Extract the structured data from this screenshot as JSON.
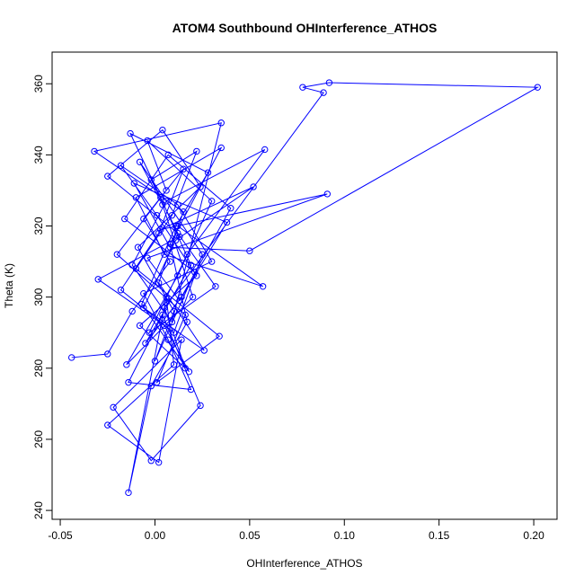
{
  "chart_data": {
    "type": "line",
    "title": "ATOM4 Southbound OHInterference_ATHOS",
    "x_label": "OHInterference_ATHOS",
    "y_label": "Theta (K)",
    "xlim": [
      -0.0543,
      0.2123
    ],
    "ylim": [
      237.5,
      368.9
    ],
    "xticks": [
      -0.05,
      {
        "value": 0,
        "label": "0.00"
      },
      0.05,
      {
        "value": 0.1,
        "label": "0.10"
      },
      0.15,
      {
        "value": 0.2,
        "label": "0.20"
      }
    ],
    "yticks": [
      240,
      260,
      280,
      300,
      320,
      340,
      360
    ],
    "series": [
      {
        "color": "#0000ff",
        "x": [
          -0.044,
          -0.025,
          -0.012,
          0.008,
          -0.006,
          0.015,
          0.002,
          -0.018,
          0.01,
          0.025,
          -0.008,
          0.004,
          0.02,
          -0.015,
          0.012,
          0.03,
          -0.004,
          0.006,
          -0.02,
          0.016,
          0.001,
          0.034,
          -0.01,
          0.009,
          0.022,
          -0.002,
          0.013,
          -0.03,
          0.005,
          0.018,
          -0.007,
          0.011,
          0.028,
          -0.013,
          0.003,
          0.019,
          -0.005,
          0.014,
          0.04,
          0.007,
          -0.016,
          0.021,
          0.0,
          0.01,
          -0.009,
          0.024,
          0.004,
          -0.025,
          0.012,
          0.032,
          -0.003,
          0.017,
          0.058,
          0.006,
          -0.012,
          0.009,
          0.035,
          -0.032,
          0.015,
          0.002,
          0.026,
          -0.006,
          0.011,
          0.052,
          0.003,
          0.091,
          -0.004,
          0.013,
          0.038,
          -0.011,
          0.008,
          0.05,
          0.202,
          0.092,
          0.078,
          0.089,
          0.005,
          0.016,
          -0.008,
          0.022,
          0.001,
          -0.018,
          0.012,
          0.03,
          -0.006,
          0.007,
          0.019,
          -0.014,
          0.004,
          0.024,
          -0.002,
          -0.022,
          0.014,
          0.002,
          -0.025,
          0.01,
          0.006,
          -0.014,
          -0.002,
          0.017,
          0.008,
          0.035,
          -0.01,
          0.005,
          0.057,
          0.012
        ],
        "values": [
          283,
          284,
          296,
          310,
          322,
          336,
          318,
          302,
          290,
          312,
          338,
          326,
          300,
          281,
          306,
          327,
          344,
          330,
          312,
          295,
          276,
          289,
          308,
          323,
          341,
          333,
          317,
          305,
          292,
          279,
          298,
          320,
          335,
          346,
          328,
          309,
          287,
          300,
          325,
          340,
          322,
          307,
          282,
          296,
          314,
          331,
          347,
          334,
          318,
          303,
          290,
          312,
          341.5,
          327,
          309,
          293,
          349,
          341,
          324,
          304,
          285,
          297,
          316,
          331,
          319,
          329,
          311,
          299,
          321,
          332,
          314,
          313,
          359,
          360.3,
          359,
          357.5,
          297,
          280,
          292,
          306,
          323,
          337,
          326,
          310,
          301,
          288,
          274,
          276,
          295,
          269.5,
          254,
          269,
          288,
          253.5,
          264,
          281,
          300,
          245,
          275,
          293,
          315,
          342,
          328,
          312,
          303,
          320
        ]
      }
    ]
  }
}
